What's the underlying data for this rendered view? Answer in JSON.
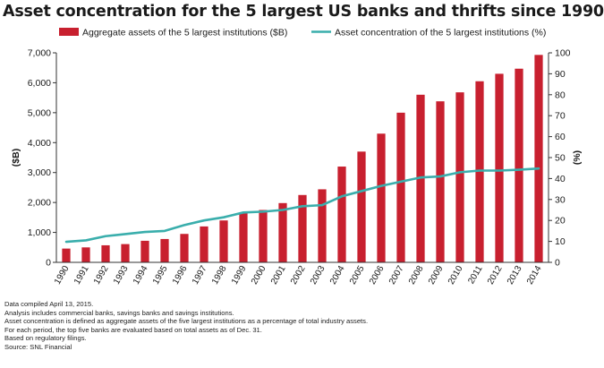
{
  "chart_data": {
    "type": "bar+line",
    "title": "Asset concentration for the 5 largest US banks and thrifts since 1990",
    "categories": [
      "1990",
      "1991",
      "1992",
      "1993",
      "1994",
      "1995",
      "1996",
      "1997",
      "1998",
      "1999",
      "2000",
      "2001",
      "2002",
      "2003",
      "2004",
      "2005",
      "2006",
      "2007",
      "2008",
      "2009",
      "2010",
      "2011",
      "2012",
      "2013",
      "2014"
    ],
    "series": [
      {
        "name": "Aggregate assets of the 5 largest institutions ($B)",
        "type": "bar",
        "axis": "left",
        "color": "#c8202f",
        "values": [
          460,
          500,
          570,
          610,
          720,
          780,
          950,
          1200,
          1400,
          1650,
          1750,
          1980,
          2250,
          2440,
          3200,
          3700,
          4300,
          5000,
          5600,
          5380,
          5680,
          6050,
          6300,
          6470,
          6930
        ]
      },
      {
        "name": "Asset concentration of the 5 largest institutions (%)",
        "type": "line",
        "axis": "right",
        "color": "#3aaeac",
        "values": [
          9.8,
          10.5,
          12.5,
          13.5,
          14.5,
          15,
          17.8,
          20,
          21.5,
          23.8,
          24.2,
          25,
          26.8,
          27.3,
          31.5,
          34,
          36.5,
          38.5,
          40.5,
          41,
          43,
          43.8,
          43.8,
          44.2,
          44.8
        ]
      }
    ],
    "ylabel_left": "($B)",
    "ylabel_right": "(%)",
    "ylim_left": [
      0,
      7000
    ],
    "ylim_right": [
      0,
      100
    ],
    "yticks_left": [
      "0",
      "1,000",
      "2,000",
      "3,000",
      "4,000",
      "5,000",
      "6,000",
      "7,000"
    ],
    "yticks_right": [
      "0",
      "10",
      "20",
      "30",
      "40",
      "50",
      "60",
      "70",
      "80",
      "90",
      "100"
    ],
    "grid": false,
    "legend": "top"
  },
  "notes": [
    "Data compiled April 13, 2015.",
    "Analysis includes commercial banks, savings banks and savings institutions.",
    "Asset concentration is defined as aggregate assets of the five largest institutions as a percentage of total industry assets.",
    "For each period, the top five banks are evaluated based on total assets as of Dec. 31.",
    "Based on regulatory filings.",
    "Source: SNL Financial"
  ]
}
